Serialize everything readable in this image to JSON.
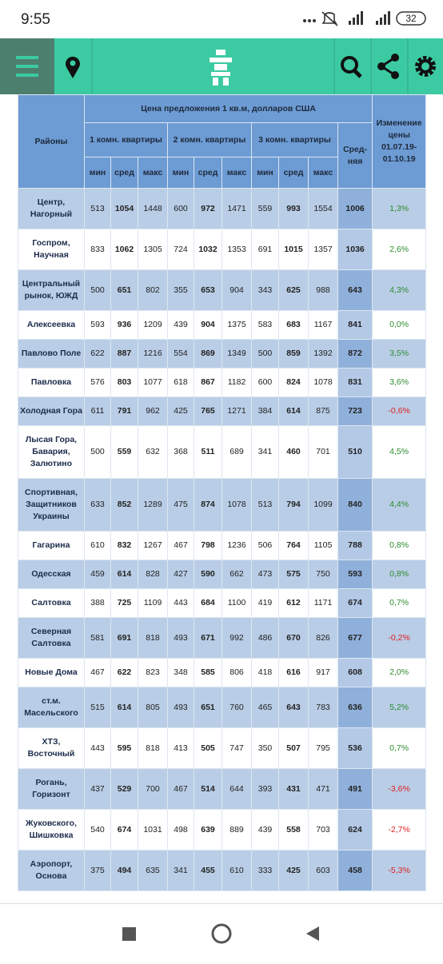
{
  "status_bar": {
    "time": "9:55",
    "battery": "32"
  },
  "table": {
    "header": {
      "district": "Районы",
      "price_title": "Цена предложения 1 кв.м, долларов США",
      "groups": [
        "1 комн. квартиры",
        "2 комн. квартиры",
        "3 комн. квартиры"
      ],
      "sub": [
        "мин",
        "сред",
        "макс"
      ],
      "average": "Сред-няя",
      "change": "Изменение цены 01.07.19-01.10.19"
    },
    "rows": [
      [
        "Центр, Нагорный",
        513,
        1054,
        1448,
        600,
        972,
        1471,
        559,
        993,
        1554,
        1006,
        "1,3%"
      ],
      [
        "Госпром, Научная",
        833,
        1062,
        1305,
        724,
        1032,
        1353,
        691,
        1015,
        1357,
        1036,
        "2,6%"
      ],
      [
        "Центральный рынок, ЮЖД",
        500,
        651,
        802,
        355,
        653,
        904,
        343,
        625,
        988,
        643,
        "4,3%"
      ],
      [
        "Алексеевка",
        593,
        936,
        1209,
        439,
        904,
        1375,
        583,
        683,
        1167,
        841,
        "0,0%"
      ],
      [
        "Павлово Поле",
        622,
        887,
        1216,
        554,
        869,
        1349,
        500,
        859,
        1392,
        872,
        "3,5%"
      ],
      [
        "Павловка",
        576,
        803,
        1077,
        618,
        867,
        1182,
        600,
        824,
        1078,
        831,
        "3,6%"
      ],
      [
        "Холодная Гора",
        611,
        791,
        962,
        425,
        765,
        1271,
        384,
        614,
        875,
        723,
        "-0,6%"
      ],
      [
        "Лысая Гора, Бавария, Залютино",
        500,
        559,
        632,
        368,
        511,
        689,
        341,
        460,
        701,
        510,
        "4,5%"
      ],
      [
        "Спортивная, Защитников Украины",
        633,
        852,
        1289,
        475,
        874,
        1078,
        513,
        794,
        1099,
        840,
        "4,4%"
      ],
      [
        "Гагарина",
        610,
        832,
        1267,
        467,
        798,
        1236,
        506,
        764,
        1105,
        788,
        "0,8%"
      ],
      [
        "Одесская",
        459,
        614,
        828,
        427,
        590,
        662,
        473,
        575,
        750,
        593,
        "0,8%"
      ],
      [
        "Салтовка",
        388,
        725,
        1109,
        443,
        684,
        1100,
        419,
        612,
        1171,
        674,
        "0,7%"
      ],
      [
        "Северная Салтовка",
        581,
        691,
        818,
        493,
        671,
        992,
        486,
        670,
        826,
        677,
        "-0,2%"
      ],
      [
        "Новые Дома",
        467,
        622,
        823,
        348,
        585,
        806,
        418,
        616,
        917,
        608,
        "2,0%"
      ],
      [
        "ст.м. Масельского",
        515,
        614,
        805,
        493,
        651,
        760,
        465,
        643,
        783,
        636,
        "5,2%"
      ],
      [
        "ХТЗ, Восточный",
        443,
        595,
        818,
        413,
        505,
        747,
        350,
        507,
        795,
        536,
        "0,7%"
      ],
      [
        "Рогань, Горизонт",
        437,
        529,
        700,
        467,
        514,
        644,
        393,
        431,
        471,
        491,
        "-3,6%"
      ],
      [
        "Жуковского, Шишковка",
        540,
        674,
        1031,
        498,
        639,
        889,
        439,
        558,
        703,
        624,
        "-2,7%"
      ],
      [
        "Аэропорт, Основа",
        375,
        494,
        635,
        341,
        455,
        610,
        333,
        425,
        603,
        458,
        "-5,3%"
      ]
    ]
  }
}
